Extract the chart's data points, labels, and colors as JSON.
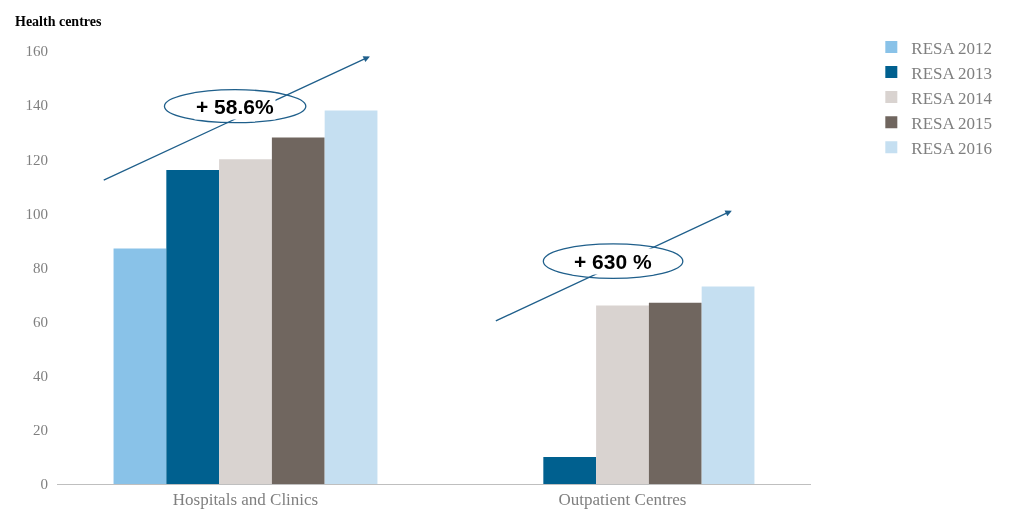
{
  "chart_data": {
    "type": "bar",
    "ylabel": "Health centres",
    "categories": [
      "Hospitals and Clinics",
      "Outpatient Centres"
    ],
    "series": [
      {
        "name": "RESA 2012",
        "color": "#89c2e8",
        "values": [
          87,
          null
        ]
      },
      {
        "name": "RESA 2013",
        "color": "#00608f",
        "values": [
          116,
          10
        ]
      },
      {
        "name": "RESA 2014",
        "color": "#d9d3d0",
        "values": [
          120,
          66
        ]
      },
      {
        "name": "RESA 2015",
        "color": "#70665f",
        "values": [
          128,
          67
        ]
      },
      {
        "name": "RESA 2016",
        "color": "#c5dff1",
        "values": [
          138,
          73
        ]
      }
    ],
    "ylim": [
      0,
      160
    ],
    "yticks": [
      0,
      20,
      40,
      60,
      80,
      100,
      120,
      140,
      160
    ],
    "annotations": [
      "+ 58.6%",
      "+ 630 %"
    ],
    "grid": false,
    "legend": "top right"
  }
}
